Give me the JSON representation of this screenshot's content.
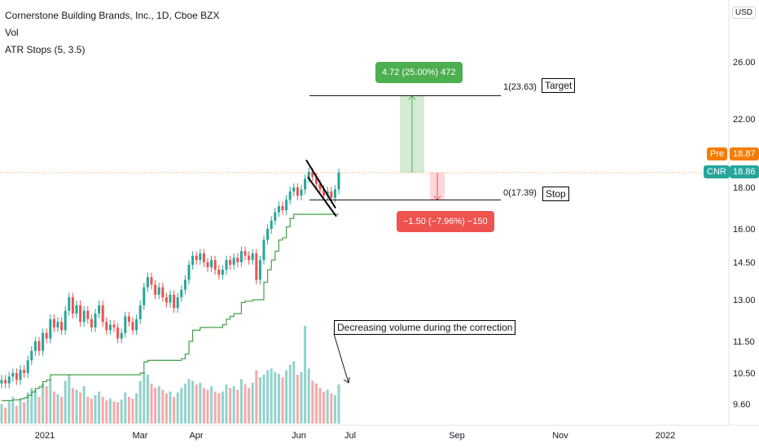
{
  "header": {
    "title": "Cornerstone Building Brands, Inc., 1D, Cboe BZX",
    "indicators": [
      "Vol",
      "ATR Stops (5, 3.5)"
    ]
  },
  "currency": "USD",
  "price_tags": [
    {
      "label": "Pre",
      "value": "18.87",
      "color": "#f57c00"
    },
    {
      "label": "CNR",
      "value": "18.86",
      "color": "#26a69a"
    }
  ],
  "annotations": {
    "target": "Target",
    "stop": "Stop",
    "volume_note": "Decreasing volume during the correction",
    "fib_top": "1(23.63)",
    "fib_bottom": "0(17.39)",
    "profit_label": "4.72 (25.00%) 472",
    "loss_label": "−1.50 (−7.96%) −150"
  },
  "colors": {
    "up": "#26a69a",
    "down": "#ef5350",
    "atr": "#43a047",
    "profit_fill": "#c8e6c9",
    "loss_fill": "#ffcdd2"
  },
  "chart_data": {
    "type": "candlestick",
    "y_ticks": [
      "26.00",
      "22.00",
      "18.00",
      "16.00",
      "14.50",
      "13.00",
      "11.50",
      "10.50",
      "9.60"
    ],
    "x_ticks": [
      "2021",
      "Mar",
      "Apr",
      "Jun",
      "Jul",
      "Sep",
      "Nov",
      "2022"
    ],
    "last_price": 18.86,
    "fib_levels": [
      {
        "level": 1,
        "value": 23.63
      },
      {
        "level": 0,
        "value": 17.39
      }
    ],
    "closes": [
      10.3,
      10.2,
      10.4,
      10.5,
      10.3,
      10.6,
      10.5,
      10.9,
      11.2,
      11.5,
      11.2,
      11.8,
      11.6,
      12.3,
      12.0,
      12.2,
      11.9,
      12.6,
      13.1,
      12.5,
      12.8,
      12.2,
      12.6,
      12.3,
      12.0,
      12.5,
      12.8,
      12.2,
      11.9,
      12.1,
      12.0,
      11.6,
      11.8,
      12.4,
      12.2,
      11.9,
      12.3,
      12.8,
      13.5,
      13.9,
      13.6,
      13.2,
      13.5,
      13.1,
      12.9,
      13.2,
      12.7,
      13.1,
      13.4,
      13.8,
      14.4,
      14.8,
      14.6,
      14.9,
      14.5,
      14.3,
      14.6,
      14.2,
      14.0,
      14.2,
      14.6,
      14.4,
      14.7,
      14.5,
      15.0,
      14.8,
      14.6,
      14.9,
      13.8,
      14.6,
      15.5,
      16.0,
      16.4,
      16.8,
      17.1,
      16.9,
      17.4,
      17.8,
      18.0,
      17.6,
      17.9,
      18.5,
      18.9,
      18.6,
      18.2,
      17.9,
      17.6,
      17.8,
      17.5,
      17.9,
      18.86
    ],
    "atr_stops": [
      9.7,
      9.7,
      9.7,
      9.72,
      9.72,
      9.75,
      9.78,
      9.85,
      9.95,
      10.05,
      10.1,
      10.25,
      10.3,
      10.45,
      10.45,
      10.45,
      10.45,
      10.45,
      10.45,
      10.45,
      10.45,
      10.45,
      10.45,
      10.45,
      10.45,
      10.45,
      10.45,
      10.45,
      10.45,
      10.45,
      10.45,
      10.45,
      10.45,
      10.45,
      10.45,
      10.45,
      10.45,
      10.5,
      10.85,
      10.9,
      10.9,
      10.9,
      10.9,
      10.9,
      10.9,
      10.9,
      10.9,
      10.9,
      10.95,
      11.1,
      11.5,
      11.9,
      11.9,
      12.0,
      12.0,
      12.0,
      12.0,
      12.0,
      12.0,
      12.1,
      12.3,
      12.4,
      12.5,
      12.5,
      12.9,
      12.95,
      12.95,
      13.0,
      13.0,
      13.0,
      13.7,
      14.2,
      14.6,
      15.0,
      15.5,
      15.6,
      16.1,
      16.5,
      16.7,
      16.7,
      16.7,
      16.7,
      16.7,
      16.7,
      16.7,
      16.7,
      16.7,
      16.7,
      16.7,
      16.7,
      16.7
    ],
    "volumes": [
      22,
      18,
      25,
      30,
      20,
      28,
      24,
      35,
      40,
      38,
      30,
      45,
      42,
      50,
      36,
      33,
      30,
      48,
      55,
      40,
      38,
      35,
      42,
      30,
      28,
      32,
      36,
      30,
      26,
      28,
      25,
      24,
      27,
      35,
      30,
      28,
      34,
      48,
      58,
      55,
      45,
      40,
      42,
      38,
      34,
      36,
      30,
      35,
      40,
      45,
      50,
      48,
      44,
      46,
      40,
      38,
      42,
      36,
      34,
      36,
      44,
      40,
      42,
      38,
      50,
      44,
      40,
      46,
      60,
      52,
      55,
      60,
      62,
      58,
      56,
      52,
      60,
      66,
      70,
      55,
      58,
      110,
      62,
      48,
      45,
      40,
      36,
      38,
      34,
      32,
      44
    ]
  }
}
